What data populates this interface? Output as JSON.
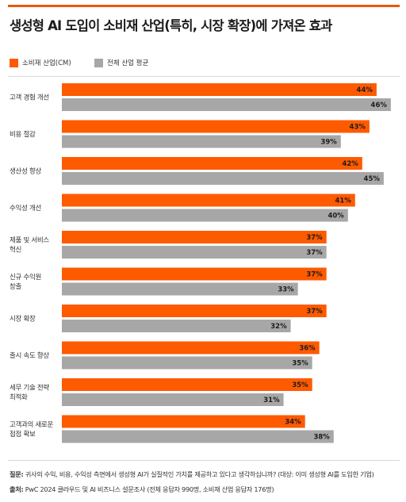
{
  "title": "생성형 AI 도입이 소비재 산업(특히, 시장 확장)에 가져온 효과",
  "colors": {
    "accent": "#e8590c",
    "consumer": "#fe5a00",
    "overall": "#a7a7a7",
    "rule": "#e8590c"
  },
  "chart_data": {
    "type": "bar",
    "orientation": "horizontal",
    "title": "생성형 AI 도입이 소비재 산업(특히, 시장 확장)에 가져온 효과",
    "categories": [
      [
        "고객 경험 개선"
      ],
      [
        "비용 절감"
      ],
      [
        "생산성 향상"
      ],
      [
        "수익성 개선"
      ],
      [
        "제품 및 서비스",
        "혁신"
      ],
      [
        "신규 수익원",
        "창출"
      ],
      [
        "시장 확장"
      ],
      [
        "출시 속도 향상"
      ],
      [
        "세무 기술 전략",
        "최적화"
      ],
      [
        "고객과의 새로운",
        "접점 확보"
      ]
    ],
    "series": [
      {
        "name": "소비재 산업(CM)",
        "values": [
          44,
          43,
          42,
          41,
          37,
          37,
          37,
          36,
          35,
          34
        ],
        "labels": [
          "44%",
          "43%",
          "42%",
          "41%",
          "37%",
          "37%",
          "37%",
          "36%",
          "35%",
          "34%"
        ]
      },
      {
        "name": "전체 산업 평균",
        "values": [
          46,
          39,
          45,
          40,
          37,
          33,
          32,
          35,
          31,
          38
        ],
        "labels": [
          "46%",
          "39%",
          "45%",
          "40%",
          "37%",
          "33%",
          "32%",
          "35%",
          "31%",
          "38%"
        ]
      }
    ],
    "unit": "%",
    "legend_position": "top-left",
    "grid": false
  },
  "footnotes": {
    "question_label": "질문:",
    "question_text": " 귀사의 수익, 비용, 수익성 측면에서 생성형 AI가 실질적인 가치를 제공하고 있다고 생각하십니까? (대상: 이미 생성형 AI를 도입한 기업)",
    "source_label": "출처:",
    "source_text": " PwC 2024 클라우드 및 AI 비즈니스 설문조사 (전체 응답자 990명, 소비재 산업 응답자 176명)"
  }
}
